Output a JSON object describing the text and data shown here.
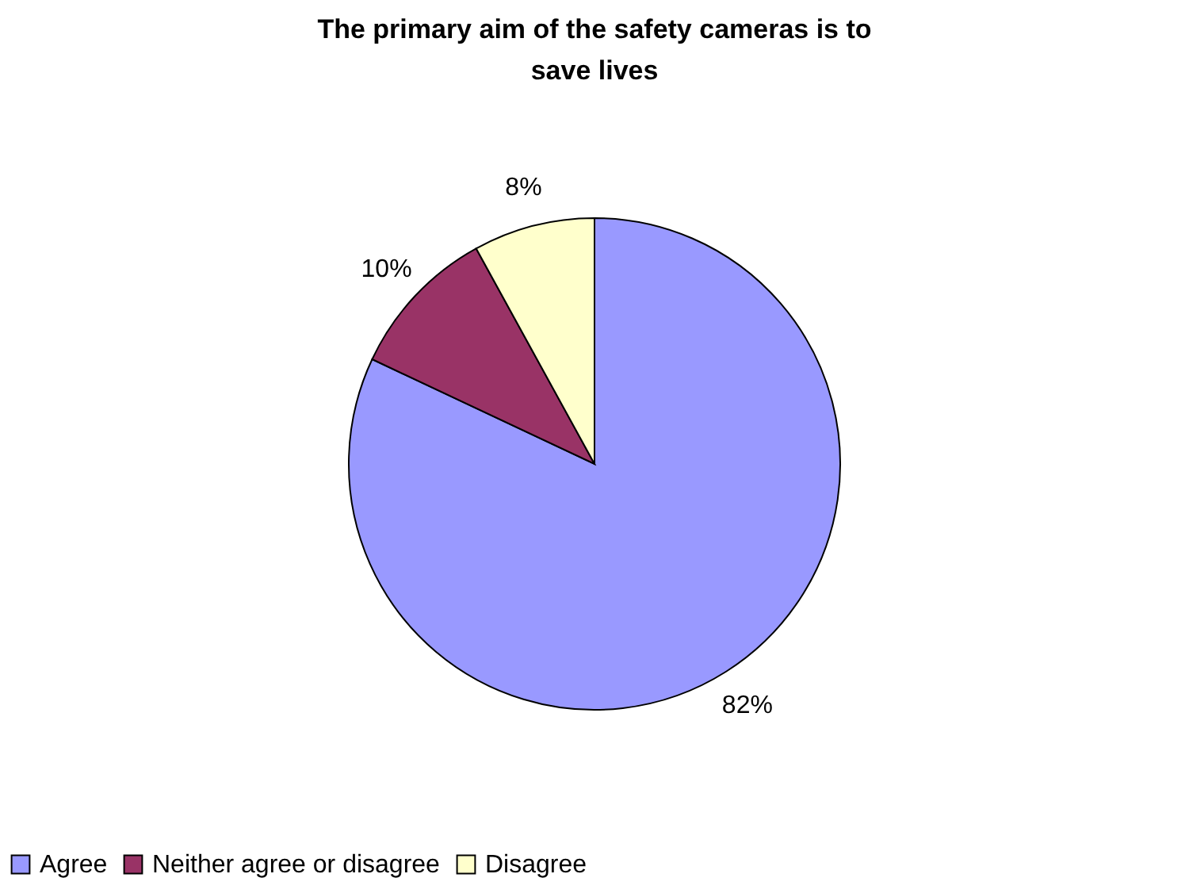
{
  "chart_data": {
    "type": "pie",
    "title": "The primary aim of the safety cameras is to save lives",
    "categories": [
      "Agree",
      "Neither agree or disagree",
      "Disagree"
    ],
    "values": [
      82,
      10,
      8
    ],
    "colors": [
      "#9999ff",
      "#993366",
      "#ffffcc"
    ],
    "value_labels": [
      "82%",
      "10%",
      "8%"
    ],
    "legend": "bottom"
  }
}
